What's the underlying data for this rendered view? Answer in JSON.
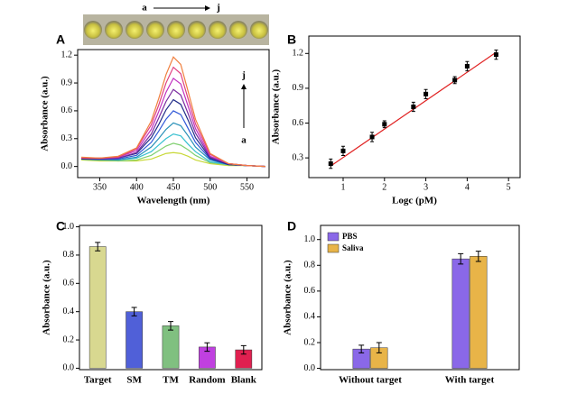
{
  "chart_data": [
    {
      "type": "line",
      "panel_label": "A",
      "x_label": "Wavelength (nm)",
      "y_label": "Absorbance (a.u.)",
      "image_caption": [
        "a",
        "j"
      ],
      "annotations": [
        "j",
        "a"
      ],
      "x": [
        325,
        350,
        375,
        400,
        420,
        430,
        440,
        450,
        460,
        470,
        480,
        500,
        525,
        550,
        575
      ],
      "series": [
        {
          "color": "#c8d838",
          "values": [
            0.07,
            0.06,
            0.06,
            0.06,
            0.08,
            0.11,
            0.14,
            0.15,
            0.14,
            0.11,
            0.07,
            0.03,
            0.01,
            0.01,
            0.0
          ]
        },
        {
          "color": "#80d070",
          "values": [
            0.08,
            0.07,
            0.06,
            0.07,
            0.12,
            0.17,
            0.22,
            0.25,
            0.23,
            0.18,
            0.12,
            0.04,
            0.02,
            0.01,
            0.0
          ]
        },
        {
          "color": "#38c0d0",
          "values": [
            0.08,
            0.07,
            0.07,
            0.09,
            0.16,
            0.23,
            0.3,
            0.35,
            0.33,
            0.24,
            0.16,
            0.05,
            0.02,
            0.01,
            0.0
          ]
        },
        {
          "color": "#2890b8",
          "values": [
            0.08,
            0.07,
            0.07,
            0.1,
            0.21,
            0.3,
            0.4,
            0.47,
            0.44,
            0.33,
            0.21,
            0.07,
            0.02,
            0.01,
            0.0
          ]
        },
        {
          "color": "#3058d8",
          "values": [
            0.08,
            0.08,
            0.08,
            0.12,
            0.26,
            0.38,
            0.51,
            0.6,
            0.56,
            0.41,
            0.26,
            0.08,
            0.02,
            0.01,
            0.0
          ]
        },
        {
          "color": "#202c88",
          "values": [
            0.08,
            0.08,
            0.09,
            0.14,
            0.31,
            0.45,
            0.61,
            0.72,
            0.67,
            0.5,
            0.31,
            0.09,
            0.02,
            0.01,
            0.0
          ]
        },
        {
          "color": "#7a2ca0",
          "values": [
            0.09,
            0.08,
            0.09,
            0.15,
            0.35,
            0.52,
            0.7,
            0.83,
            0.77,
            0.57,
            0.36,
            0.1,
            0.03,
            0.01,
            0.0
          ]
        },
        {
          "color": "#c030c0",
          "values": [
            0.09,
            0.09,
            0.1,
            0.17,
            0.4,
            0.59,
            0.8,
            0.95,
            0.89,
            0.65,
            0.41,
            0.11,
            0.03,
            0.01,
            0.0
          ]
        },
        {
          "color": "#e04080",
          "values": [
            0.09,
            0.09,
            0.1,
            0.19,
            0.45,
            0.66,
            0.9,
            1.07,
            1.0,
            0.73,
            0.46,
            0.13,
            0.03,
            0.01,
            0.0
          ]
        },
        {
          "color": "#f08040",
          "values": [
            0.1,
            0.09,
            0.11,
            0.2,
            0.49,
            0.73,
            0.99,
            1.18,
            1.1,
            0.81,
            0.51,
            0.14,
            0.03,
            0.01,
            0.0
          ]
        }
      ],
      "xlim": [
        320,
        580
      ],
      "xticks": [
        350,
        400,
        450,
        500,
        550
      ],
      "ylim": [
        -0.12,
        1.26
      ],
      "yticks": [
        {
          "value": 0,
          "label": "0.0"
        },
        0.3,
        0.6,
        0.9,
        1.2
      ]
    },
    {
      "type": "scatter",
      "panel_label": "B",
      "x_label": "Logc (pM)",
      "y_label": "Absorbance (a.u.)",
      "x": [
        0.7,
        1,
        1.7,
        2,
        2.7,
        3,
        3.7,
        4,
        4.7
      ],
      "values": [
        0.25,
        0.36,
        0.48,
        0.59,
        0.74,
        0.85,
        0.97,
        1.09,
        1.19
      ],
      "errors": [
        0.04,
        0.04,
        0.04,
        0.03,
        0.04,
        0.04,
        0.03,
        0.04,
        0.04
      ],
      "color": "#000000",
      "fit": {
        "x": [
          0.7,
          4.7
        ],
        "y": [
          0.23,
          1.21
        ]
      },
      "fit_color": "#e02020",
      "xlim": [
        0.17,
        5.28
      ],
      "xticks": [
        1,
        2,
        3,
        4,
        5
      ],
      "ylim": [
        0.13,
        1.35
      ],
      "yticks": [
        0.3,
        0.6,
        0.9,
        1.2
      ]
    },
    {
      "type": "bar",
      "panel_label": "C",
      "y_label": "Absorbance (a.u.)",
      "categories": [
        "Target",
        "SM",
        "TM",
        "Random",
        "Blank"
      ],
      "values": [
        0.86,
        0.4,
        0.3,
        0.15,
        0.13
      ],
      "errors": [
        0.03,
        0.03,
        0.03,
        0.03,
        0.03
      ],
      "colors": [
        "#d8d890",
        "#5060d8",
        "#80c080",
        "#c040e0",
        "#e02050"
      ],
      "ylim": [
        -0.01,
        1.01
      ],
      "yticks": [
        {
          "value": 0,
          "label": "0.0"
        },
        0.2,
        0.4,
        0.6,
        0.8,
        {
          "value": 1,
          "label": "1.0"
        }
      ]
    },
    {
      "type": "bar",
      "panel_label": "D",
      "y_label": "Absorbance (a.u.)",
      "legend": "upper left",
      "categories": [
        "Without target",
        "With target"
      ],
      "series": [
        {
          "name": "PBS",
          "color": "#8a68e8",
          "values": [
            0.15,
            0.85
          ],
          "errors": [
            0.03,
            0.04
          ]
        },
        {
          "name": "Saliva",
          "color": "#e8b448",
          "values": [
            0.16,
            0.87
          ],
          "errors": [
            0.04,
            0.04
          ]
        }
      ],
      "ylim": [
        -0.01,
        1.11
      ],
      "yticks": [
        {
          "value": 0,
          "label": "0.0"
        },
        0.2,
        0.4,
        0.6,
        0.8,
        {
          "value": 1,
          "label": "1.0"
        }
      ]
    }
  ]
}
